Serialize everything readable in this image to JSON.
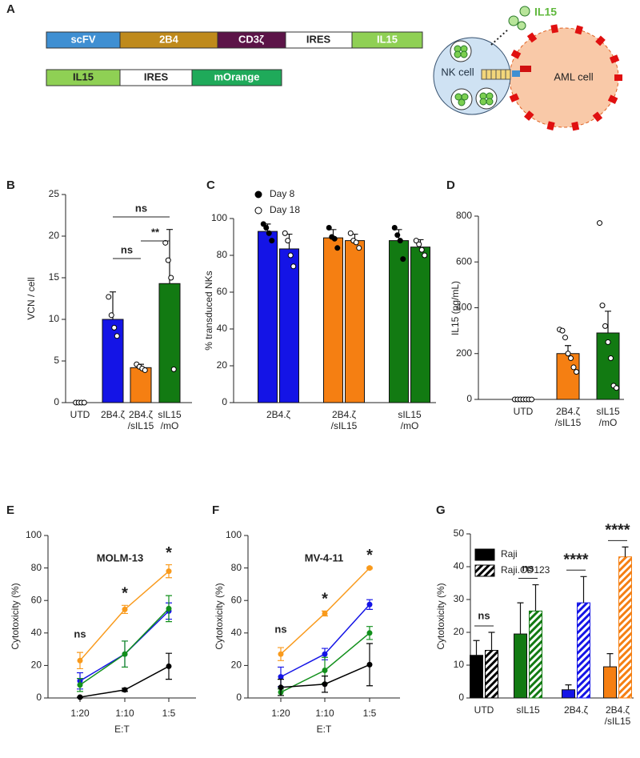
{
  "panel_a": {
    "label": "A",
    "construct_1": [
      "scFV",
      "2B4",
      "CD3ζ",
      "IRES",
      "IL15"
    ],
    "construct_2": [
      "IL15",
      "IRES",
      "mOrange"
    ],
    "secreted": "IL15",
    "nk_cell": "NK cell",
    "aml_cell": "AML cell"
  },
  "chart_data": [
    {
      "panel": "B",
      "type": "bar",
      "ylabel": "VCN / cell",
      "ylim": [
        0,
        25
      ],
      "yticks": [
        0,
        5,
        10,
        15,
        20,
        25
      ],
      "categories": [
        [
          "UTD"
        ],
        [
          "2B4.ζ"
        ],
        [
          "2B4.ζ",
          "/sIL15"
        ],
        [
          "sIL15",
          "/mO"
        ]
      ],
      "values": [
        0,
        10,
        4.2,
        14.3
      ],
      "errors": [
        0,
        3.3,
        0.4,
        6.5
      ],
      "points": [
        [
          0,
          0,
          0,
          0
        ],
        [
          12.7,
          10.5,
          9.0,
          8.0
        ],
        [
          4.6,
          4.3,
          4.1,
          3.9
        ],
        [
          19.2,
          17.1,
          15.0,
          4.0
        ]
      ],
      "colors": [
        "#1414e6",
        "#1414e6",
        "#f57f12",
        "#127a12"
      ],
      "annotations": [
        "ns",
        "**",
        "ns"
      ]
    },
    {
      "panel": "C",
      "type": "grouped_bar",
      "ylabel": "% transduced NKs",
      "ylim": [
        0,
        100
      ],
      "yticks": [
        0,
        20,
        40,
        60,
        80,
        100
      ],
      "categories": [
        [
          "2B4.ζ"
        ],
        [
          "2B4.ζ",
          "/sIL15"
        ],
        [
          "sIL15",
          "/mO"
        ]
      ],
      "colors": [
        "#1414e6",
        "#f57f12",
        "#127a12"
      ],
      "series": [
        {
          "name": "Day 8",
          "marker": "filled",
          "values": [
            93,
            89.5,
            88
          ],
          "errors": [
            4,
            4.5,
            6
          ],
          "points": [
            [
              97,
              95,
              92,
              88
            ],
            [
              95,
              90,
              89,
              84
            ],
            [
              95,
              91,
              88,
              78
            ]
          ]
        },
        {
          "name": "Day 18",
          "marker": "open",
          "values": [
            83.5,
            88,
            84.5
          ],
          "errors": [
            8,
            3.5,
            4
          ],
          "points": [
            [
              92,
              88,
              80,
              74
            ],
            [
              92,
              88,
              87,
              84
            ],
            [
              88,
              86,
              83,
              80
            ]
          ]
        }
      ]
    },
    {
      "panel": "D",
      "type": "bar",
      "ylabel": "IL15 (pg/mL)",
      "ylim": [
        0,
        800
      ],
      "yticks": [
        0,
        200,
        400,
        600,
        800
      ],
      "categories": [
        [
          "UTD"
        ],
        [
          "2B4.ζ",
          "/sIL15"
        ],
        [
          "sIL15",
          "/mO"
        ]
      ],
      "values": [
        0,
        200,
        290
      ],
      "errors": [
        0,
        35,
        95
      ],
      "points": [
        [
          0,
          0,
          0,
          0,
          0,
          0,
          0
        ],
        [
          305,
          300,
          270,
          200,
          180,
          140,
          120
        ],
        [
          770,
          410,
          320,
          250,
          180,
          60,
          50
        ]
      ],
      "colors": [
        "#1414e6",
        "#f57f12",
        "#127a12"
      ]
    },
    {
      "panel": "E",
      "type": "line",
      "title": "MOLM-13",
      "xlabel": "E:T",
      "ylabel": "Cytotoxicity (%)",
      "ylim": [
        0,
        100
      ],
      "yticks": [
        0,
        20,
        40,
        60,
        80,
        100
      ],
      "categories": [
        "1:20",
        "1:10",
        "1:5"
      ],
      "annotations": [
        "ns",
        "*",
        "*"
      ],
      "series": [
        {
          "color": "#f99a1c",
          "values": [
            23,
            54.5,
            78
          ],
          "errors": [
            5,
            2.5,
            4
          ]
        },
        {
          "color": "#1414e6",
          "values": [
            10.5,
            27,
            53.5
          ],
          "errors": [
            5,
            8,
            5
          ]
        },
        {
          "color": "#12901c",
          "values": [
            8,
            27,
            55
          ],
          "errors": [
            4,
            8,
            8
          ]
        },
        {
          "color": "#000000",
          "values": [
            0.5,
            5,
            19.5
          ],
          "errors": [
            0,
            1,
            8
          ]
        }
      ]
    },
    {
      "panel": "F",
      "type": "line",
      "title": "MV-4-11",
      "xlabel": "E:T",
      "ylabel": "Cytotoxicity (%)",
      "ylim": [
        0,
        100
      ],
      "yticks": [
        0,
        20,
        40,
        60,
        80,
        100
      ],
      "categories": [
        "1:20",
        "1:10",
        "1:5"
      ],
      "annotations": [
        "ns",
        "*",
        "*"
      ],
      "series": [
        {
          "color": "#f99a1c",
          "values": [
            27,
            52,
            80
          ],
          "errors": [
            4,
            1.5,
            0.5
          ]
        },
        {
          "color": "#1414e6",
          "values": [
            13,
            27,
            57.5
          ],
          "errors": [
            6,
            3.5,
            3
          ]
        },
        {
          "color": "#12901c",
          "values": [
            3.5,
            17,
            40
          ],
          "errors": [
            2,
            8,
            4
          ]
        },
        {
          "color": "#000000",
          "values": [
            6.5,
            8.5,
            20.5
          ],
          "errors": [
            5,
            5,
            13
          ]
        }
      ]
    },
    {
      "panel": "G",
      "type": "grouped_bar",
      "ylabel": "Cytotoxicity (%)",
      "ylim": [
        0,
        50
      ],
      "yticks": [
        0,
        10,
        20,
        30,
        40,
        50
      ],
      "categories": [
        [
          "UTD"
        ],
        [
          "sIL15"
        ],
        [
          "2B4.ζ"
        ],
        [
          "2B4.ζ",
          "/sIL15"
        ]
      ],
      "colors": [
        "#000000",
        "#127a12",
        "#1414e6",
        "#f57f12"
      ],
      "legend_color": "#000000",
      "annotations": [
        "ns",
        "ns",
        "****",
        "****"
      ],
      "series": [
        {
          "name": "Raji",
          "hatch": false,
          "values": [
            13,
            19.5,
            2.5,
            9.5
          ],
          "errors": [
            4.5,
            9.5,
            1.5,
            4
          ]
        },
        {
          "name": "Raji.CD123",
          "hatch": true,
          "values": [
            14.5,
            26.5,
            29,
            43
          ],
          "errors": [
            5.5,
            8,
            8,
            3
          ]
        }
      ]
    }
  ]
}
